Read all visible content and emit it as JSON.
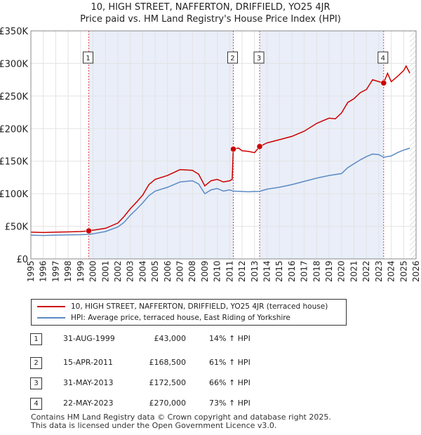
{
  "title_line1": "10, HIGH STREET, NAFFERTON, DRIFFIELD, YO25 4JR",
  "title_line2": "Price paid vs. HM Land Registry's House Price Index (HPI)",
  "chart_data": {
    "type": "line",
    "x_range": [
      1995,
      2026
    ],
    "ylim": [
      0,
      350000
    ],
    "y_ticks": [
      {
        "value": 0,
        "label": "£0"
      },
      {
        "value": 50000,
        "label": "£50K"
      },
      {
        "value": 100000,
        "label": "£100K"
      },
      {
        "value": 150000,
        "label": "£150K"
      },
      {
        "value": 200000,
        "label": "£200K"
      },
      {
        "value": 250000,
        "label": "£250K"
      },
      {
        "value": 300000,
        "label": "£300K"
      },
      {
        "value": 350000,
        "label": "£350K"
      }
    ],
    "x_ticks": [
      1995,
      1996,
      1997,
      1998,
      1999,
      2000,
      2001,
      2002,
      2003,
      2004,
      2005,
      2006,
      2007,
      2008,
      2009,
      2010,
      2011,
      2012,
      2013,
      2014,
      2015,
      2016,
      2017,
      2018,
      2019,
      2020,
      2021,
      2022,
      2023,
      2024,
      2025,
      2026
    ],
    "grid": true,
    "data_end": 2025.5,
    "series": [
      {
        "name": "10, HIGH STREET, NAFFERTON, DRIFFIELD, YO25 4JR (terraced house)",
        "color": "#cc0000",
        "points": [
          [
            1995.0,
            41000
          ],
          [
            1996.0,
            40500
          ],
          [
            1997.0,
            41000
          ],
          [
            1998.0,
            41500
          ],
          [
            1999.0,
            42000
          ],
          [
            1999.66,
            43000
          ],
          [
            2000.0,
            44000
          ],
          [
            2001.0,
            47000
          ],
          [
            2002.0,
            55000
          ],
          [
            2002.5,
            65000
          ],
          [
            2003.0,
            77000
          ],
          [
            2003.5,
            87000
          ],
          [
            2004.0,
            98000
          ],
          [
            2004.5,
            114000
          ],
          [
            2005.0,
            122000
          ],
          [
            2006.0,
            128000
          ],
          [
            2007.0,
            137000
          ],
          [
            2008.0,
            136000
          ],
          [
            2008.5,
            130000
          ],
          [
            2009.0,
            112000
          ],
          [
            2009.5,
            120000
          ],
          [
            2010.0,
            122000
          ],
          [
            2010.5,
            118000
          ],
          [
            2011.0,
            120000
          ],
          [
            2011.2,
            122000
          ],
          [
            2011.29,
            168500
          ],
          [
            2011.7,
            170000
          ],
          [
            2012.0,
            166000
          ],
          [
            2012.5,
            165000
          ],
          [
            2013.0,
            163000
          ],
          [
            2013.41,
            172500
          ],
          [
            2014.0,
            178000
          ],
          [
            2015.0,
            183000
          ],
          [
            2016.0,
            188000
          ],
          [
            2017.0,
            196000
          ],
          [
            2018.0,
            208000
          ],
          [
            2018.5,
            212000
          ],
          [
            2019.0,
            216000
          ],
          [
            2019.5,
            215000
          ],
          [
            2020.0,
            224000
          ],
          [
            2020.5,
            240000
          ],
          [
            2021.0,
            246000
          ],
          [
            2021.5,
            255000
          ],
          [
            2022.0,
            260000
          ],
          [
            2022.5,
            275000
          ],
          [
            2023.0,
            272000
          ],
          [
            2023.39,
            270000
          ],
          [
            2023.7,
            285000
          ],
          [
            2024.0,
            272000
          ],
          [
            2024.5,
            280000
          ],
          [
            2025.0,
            289000
          ],
          [
            2025.2,
            296000
          ],
          [
            2025.5,
            285000
          ]
        ]
      },
      {
        "name": "HPI: Average price, terraced house, East Riding of Yorkshire",
        "color": "#5b8ac4",
        "points": [
          [
            1995.0,
            36500
          ],
          [
            1996.0,
            36000
          ],
          [
            1997.0,
            36500
          ],
          [
            1998.0,
            36800
          ],
          [
            1999.0,
            37200
          ],
          [
            1999.66,
            37700
          ],
          [
            2000.0,
            38500
          ],
          [
            2001.0,
            42000
          ],
          [
            2002.0,
            49000
          ],
          [
            2002.5,
            56000
          ],
          [
            2003.0,
            67000
          ],
          [
            2003.5,
            76000
          ],
          [
            2004.0,
            86000
          ],
          [
            2004.5,
            97000
          ],
          [
            2005.0,
            104000
          ],
          [
            2006.0,
            110000
          ],
          [
            2007.0,
            118000
          ],
          [
            2008.0,
            120000
          ],
          [
            2008.5,
            115000
          ],
          [
            2009.0,
            100000
          ],
          [
            2009.5,
            106000
          ],
          [
            2010.0,
            108000
          ],
          [
            2010.5,
            104000
          ],
          [
            2011.0,
            106000
          ],
          [
            2011.29,
            104000
          ],
          [
            2012.0,
            103500
          ],
          [
            2012.5,
            103000
          ],
          [
            2013.0,
            103500
          ],
          [
            2013.41,
            103700
          ],
          [
            2014.0,
            107000
          ],
          [
            2015.0,
            110000
          ],
          [
            2016.0,
            114000
          ],
          [
            2017.0,
            119000
          ],
          [
            2018.0,
            124000
          ],
          [
            2019.0,
            128000
          ],
          [
            2020.0,
            131000
          ],
          [
            2020.5,
            140000
          ],
          [
            2021.0,
            146000
          ],
          [
            2021.5,
            152000
          ],
          [
            2022.0,
            157000
          ],
          [
            2022.5,
            161000
          ],
          [
            2023.0,
            160000
          ],
          [
            2023.39,
            156000
          ],
          [
            2024.0,
            158000
          ],
          [
            2024.5,
            163000
          ],
          [
            2025.0,
            167000
          ],
          [
            2025.5,
            170000
          ]
        ]
      }
    ],
    "transactions": [
      {
        "id": "1",
        "year": 1999.66,
        "price": 43000,
        "date": "31-AUG-1999",
        "price_label": "£43,000",
        "delta": "14% ↑ HPI"
      },
      {
        "id": "2",
        "year": 2011.29,
        "price": 168500,
        "date": "15-APR-2011",
        "price_label": "£168,500",
        "delta": "61% ↑ HPI"
      },
      {
        "id": "3",
        "year": 2013.41,
        "price": 172500,
        "date": "31-MAY-2013",
        "price_label": "£172,500",
        "delta": "66% ↑ HPI"
      },
      {
        "id": "4",
        "year": 2023.39,
        "price": 270000,
        "date": "22-MAY-2023",
        "price_label": "£270,000",
        "delta": "73% ↑ HPI"
      }
    ]
  },
  "footer_line1": "Contains HM Land Registry data © Crown copyright and database right 2025.",
  "footer_line2": "This data is licensed under the Open Government Licence v3.0."
}
